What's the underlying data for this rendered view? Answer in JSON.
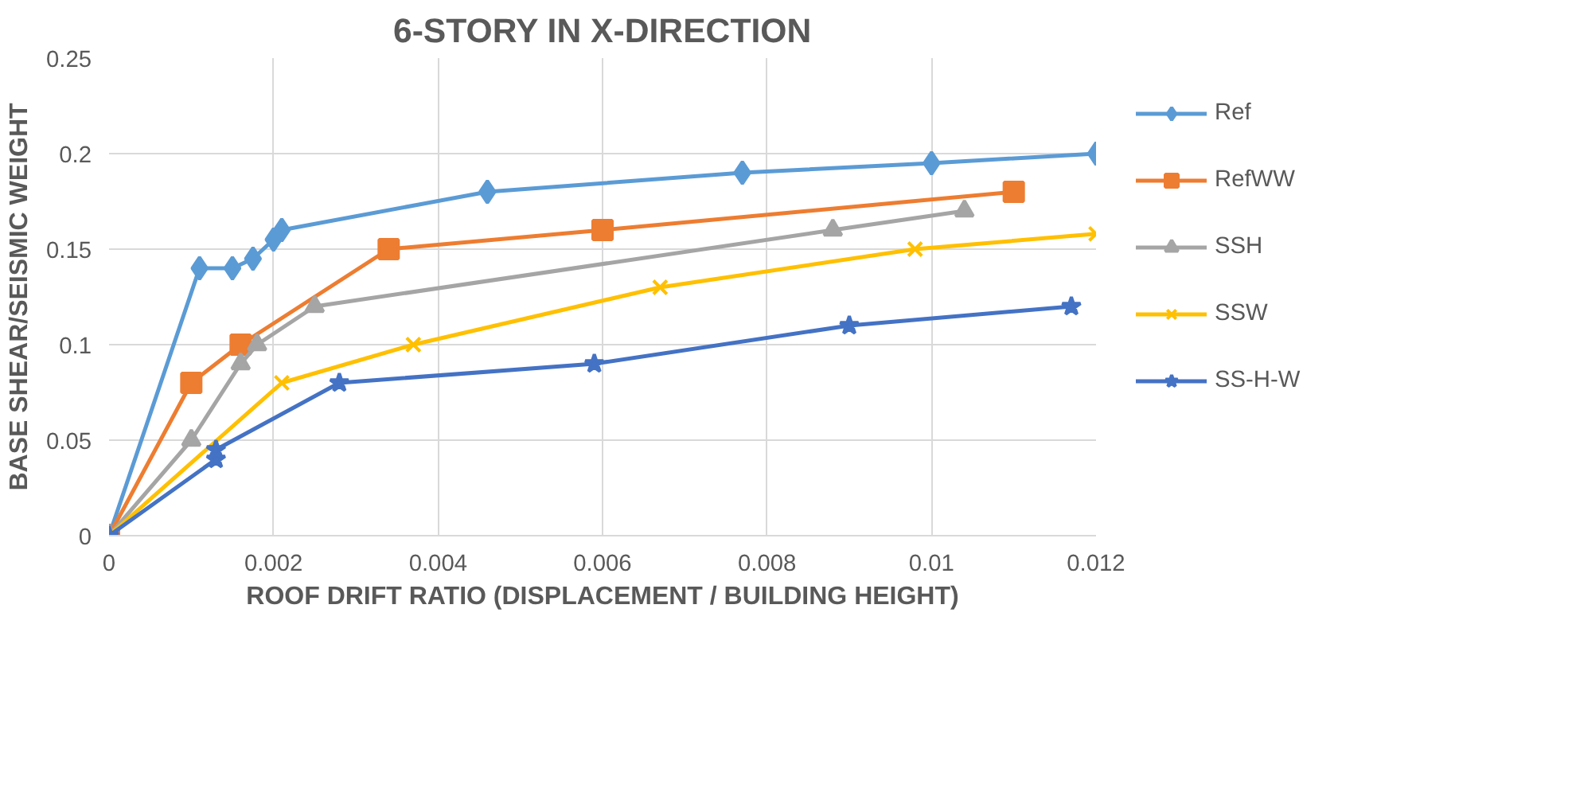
{
  "chart_data": {
    "type": "line",
    "title": "6-STORY IN X-DIRECTION",
    "xlabel": "ROOF DRIFT RATIO (DISPLACEMENT / BUILDING HEIGHT)",
    "ylabel": "BASE SHEAR/SEISMIC WEIGHT",
    "xlim": [
      0,
      0.012
    ],
    "xticks": [
      0,
      0.002,
      0.004,
      0.006,
      0.008,
      0.01,
      0.012
    ],
    "ylim": [
      0,
      0.25
    ],
    "yticks": [
      0,
      0.05,
      0.1,
      0.15,
      0.2,
      0.25
    ],
    "grid": true,
    "legend": "right",
    "line_style": "solid",
    "series": [
      {
        "name": "Ref",
        "color": "#5b9bd5",
        "marker": "diamond",
        "x": [
          0,
          0.0011,
          0.0015,
          0.00175,
          0.002,
          0.0021,
          0.0046,
          0.0077,
          0.01,
          0.012
        ],
        "values": [
          0,
          0.14,
          0.14,
          0.145,
          0.155,
          0.16,
          0.18,
          0.19,
          0.195,
          0.2
        ]
      },
      {
        "name": "RefWW",
        "color": "#ed7d31",
        "marker": "square",
        "x": [
          0,
          0.001,
          0.0016,
          0.0034,
          0.006,
          0.011
        ],
        "values": [
          0,
          0.08,
          0.1,
          0.15,
          0.16,
          0.18
        ]
      },
      {
        "name": "SSH",
        "color": "#a5a5a5",
        "marker": "triangle",
        "x": [
          0,
          0.001,
          0.0016,
          0.0018,
          0.0025,
          0.0088,
          0.0104
        ],
        "values": [
          0,
          0.05,
          0.09,
          0.1,
          0.12,
          0.16,
          0.17
        ]
      },
      {
        "name": "SSW",
        "color": "#ffc000",
        "marker": "cross",
        "x": [
          0,
          0.0021,
          0.0037,
          0.0067,
          0.0098,
          0.012
        ],
        "values": [
          0,
          0.08,
          0.1,
          0.13,
          0.15,
          0.158
        ]
      },
      {
        "name": "SS-H-W",
        "color": "#4472c4",
        "marker": "star",
        "x": [
          0,
          0.0013,
          0.0013,
          0.0028,
          0.0059,
          0.009,
          0.0117
        ],
        "values": [
          0,
          0.04,
          0.045,
          0.08,
          0.09,
          0.11,
          0.12
        ]
      }
    ]
  }
}
